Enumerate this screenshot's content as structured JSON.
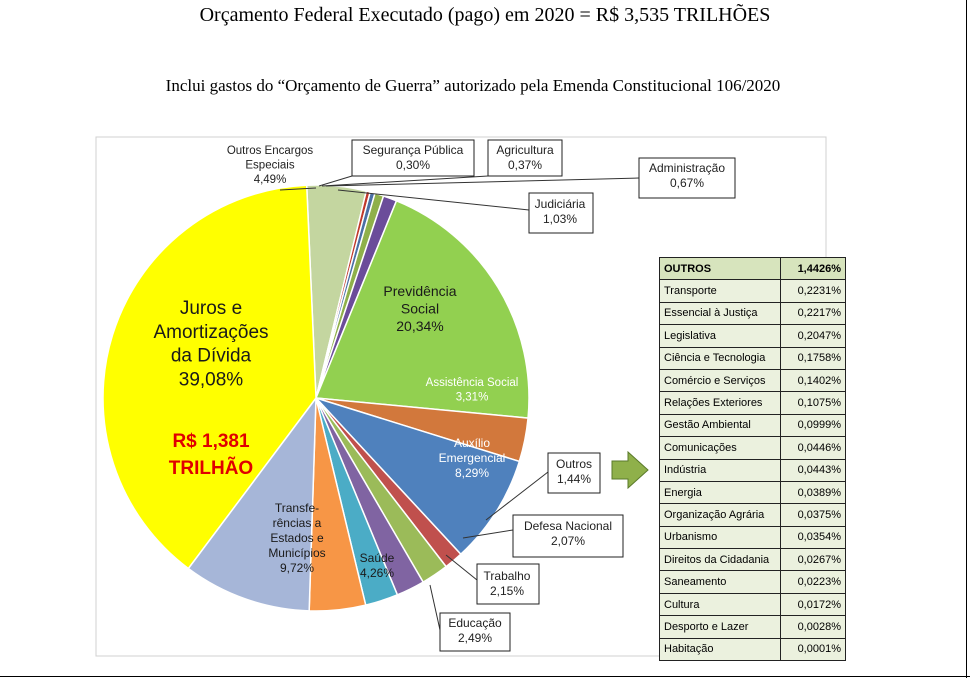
{
  "chart_data": {
    "type": "pie",
    "title": "Orçamento Federal Executado (pago) em 2020 = R$ 3,535 TRILHÕES",
    "subtitle": "Inclui gastos do “Orçamento de Guerra” autorizado pela Emenda Constitucional 106/2020",
    "slices": [
      {
        "label": [
          "Outros Encargos",
          "Especiais"
        ],
        "pct": "4,49%",
        "value": 4.49,
        "color": "#c4d6a0"
      },
      {
        "label": [
          "Segurança Pública"
        ],
        "pct": "0,30%",
        "value": 0.3,
        "color": "#c0392b"
      },
      {
        "label": [
          "Agricultura"
        ],
        "pct": "0,37%",
        "value": 0.37,
        "color": "#4a6fa5"
      },
      {
        "label": [
          "Administração"
        ],
        "pct": "0,67%",
        "value": 0.67,
        "color": "#8fb04a"
      },
      {
        "label": [
          "Judiciária"
        ],
        "pct": "1,03%",
        "value": 1.03,
        "color": "#6b4c9a"
      },
      {
        "label": [
          "Previdência",
          "Social"
        ],
        "pct": "20,34%",
        "value": 20.34,
        "color": "#92d050"
      },
      {
        "label": [
          "Assistência Social"
        ],
        "pct": "3,31%",
        "value": 3.31,
        "color": "#d2783c"
      },
      {
        "label": [
          "Auxílio",
          "Emergencial"
        ],
        "pct": "8,29%",
        "value": 8.29,
        "color": "#4f81bd"
      },
      {
        "label": [
          "Outros"
        ],
        "pct": "1,44%",
        "value": 1.44,
        "color": "#c0504d"
      },
      {
        "label": [
          "Defesa Nacional"
        ],
        "pct": "2,07%",
        "value": 2.07,
        "color": "#9bbb59"
      },
      {
        "label": [
          "Trabalho"
        ],
        "pct": "2,15%",
        "value": 2.15,
        "color": "#8064a2"
      },
      {
        "label": [
          "Educação"
        ],
        "pct": "2,49%",
        "value": 2.49,
        "color": "#4bacc6"
      },
      {
        "label": [
          "Saúde"
        ],
        "pct": "4,26%",
        "value": 4.26,
        "color": "#f79646"
      },
      {
        "label": [
          "Transfe-",
          "rências a",
          "Estados e",
          "Municípios"
        ],
        "pct": "9,72%",
        "value": 9.72,
        "color": "#a6b6d8"
      },
      {
        "label": [
          "Juros e",
          "Amortizações",
          "da Dívida"
        ],
        "pct": "39,08%",
        "value": 39.08,
        "color": "#ffff00",
        "extra": [
          "R$ 1,381",
          "TRILHÃO"
        ]
      }
    ],
    "outros_table": {
      "header": {
        "name": "OUTROS",
        "value": "1,4426%"
      },
      "rows": [
        {
          "name": "Transporte",
          "value": "0,2231%"
        },
        {
          "name": "Essencial à Justiça",
          "value": "0,2217%"
        },
        {
          "name": "Legislativa",
          "value": "0,2047%"
        },
        {
          "name": "Ciência e Tecnologia",
          "value": "0,1758%"
        },
        {
          "name": "Comércio e Serviços",
          "value": "0,1402%"
        },
        {
          "name": "Relações Exteriores",
          "value": "0,1075%"
        },
        {
          "name": "Gestão Ambiental",
          "value": "0,0999%"
        },
        {
          "name": "Comunicações",
          "value": "0,0446%"
        },
        {
          "name": "Indústria",
          "value": "0,0443%"
        },
        {
          "name": "Energia",
          "value": "0,0389%"
        },
        {
          "name": "Organização Agrária",
          "value": "0,0375%"
        },
        {
          "name": "Urbanismo",
          "value": "0,0354%"
        },
        {
          "name": "Direitos da Cidadania",
          "value": "0,0267%"
        },
        {
          "name": "Saneamento",
          "value": "0,0223%"
        },
        {
          "name": "Cultura",
          "value": "0,0172%"
        },
        {
          "name": "Desporto e Lazer",
          "value": "0,0028%"
        },
        {
          "name": "Habitação",
          "value": "0,0001%"
        }
      ]
    },
    "colors": {
      "highlight_text": "#e00000",
      "arrow": "#8fb04a",
      "table_bg": "#ebf1de",
      "table_head": "#d7e4bd"
    }
  }
}
